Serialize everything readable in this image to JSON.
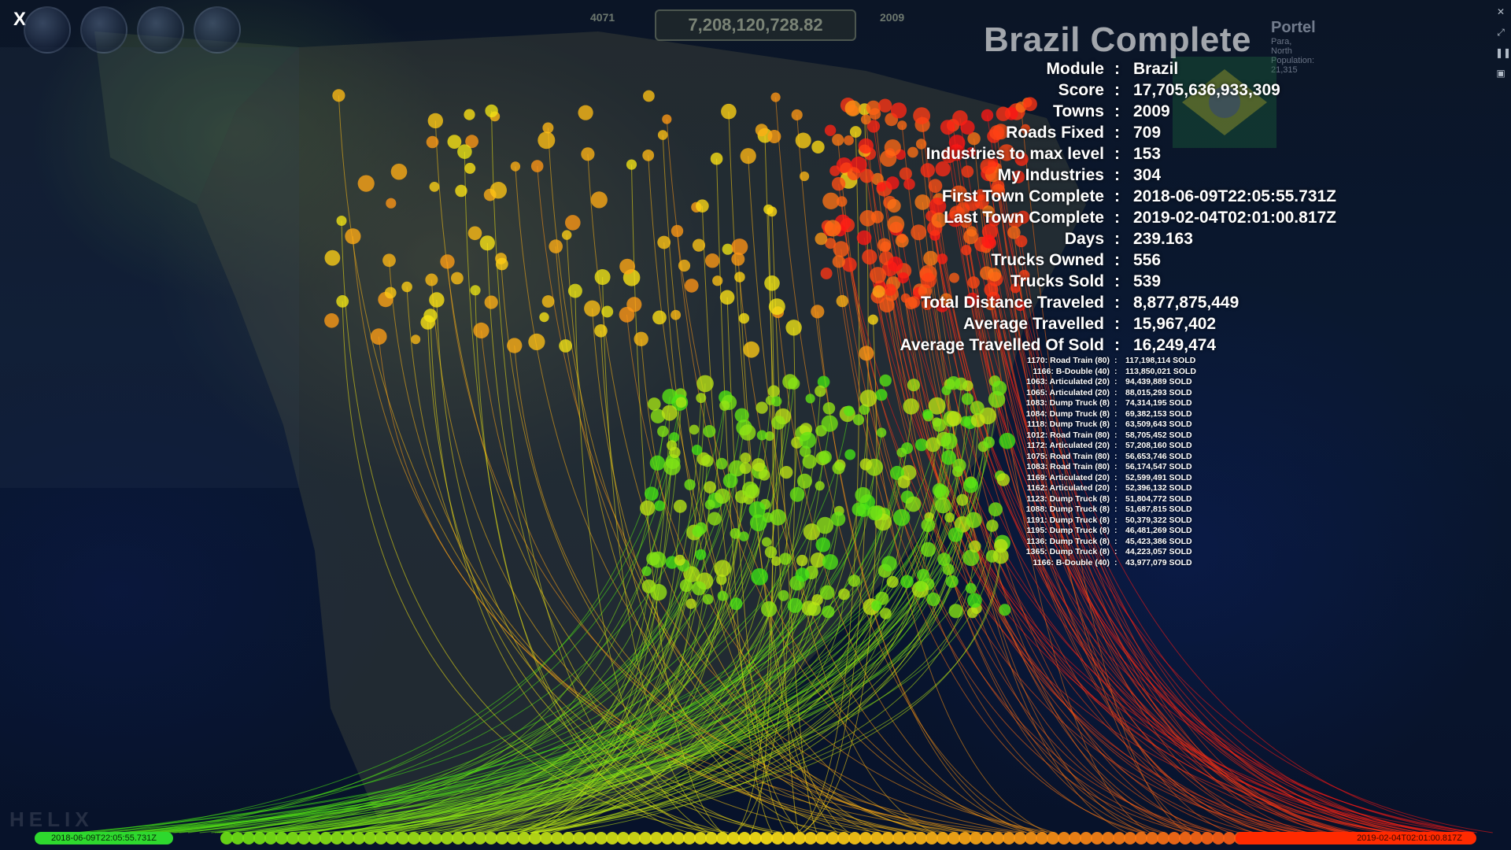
{
  "window": {
    "close_label": "X"
  },
  "hud": {
    "money": "7,208,120,728.82",
    "left_count": "4071",
    "year": "2009",
    "town_name": "Portel",
    "town_region": "Para, North",
    "town_population": "Population: 21,315"
  },
  "summary": {
    "title": "Brazil Complete",
    "stats": [
      {
        "label": "Module",
        "value": "Brazil"
      },
      {
        "label": "Score",
        "value": "17,705,636,933,309"
      },
      {
        "label": "Towns",
        "value": "2009"
      },
      {
        "label": "Roads Fixed",
        "value": "709"
      },
      {
        "label": "Industries to max level",
        "value": "153"
      },
      {
        "label": "My Industries",
        "value": "304"
      },
      {
        "label": "First Town Complete",
        "value": "2018-06-09T22:05:55.731Z"
      },
      {
        "label": "Last Town Complete",
        "value": "2019-02-04T02:01:00.817Z"
      },
      {
        "label": "Days",
        "value": "239.163"
      },
      {
        "label": "Trucks Owned",
        "value": "556"
      },
      {
        "label": "Trucks Sold",
        "value": "539"
      },
      {
        "label": "Total Distance Traveled",
        "value": "8,877,875,449"
      },
      {
        "label": "Average Travelled",
        "value": "15,967,402"
      },
      {
        "label": "Average Travelled Of Sold",
        "value": "16,249,474"
      }
    ],
    "sold_trucks": [
      {
        "name": "1170: Road Train (80)",
        "value": "117,198,114 SOLD"
      },
      {
        "name": "1166: B-Double (40)",
        "value": "113,850,021 SOLD"
      },
      {
        "name": "1063: Articulated (20)",
        "value": "94,439,889 SOLD"
      },
      {
        "name": "1065: Articulated (20)",
        "value": "88,015,293 SOLD"
      },
      {
        "name": "1083: Dump Truck (8)",
        "value": "74,314,195 SOLD"
      },
      {
        "name": "1084: Dump Truck (8)",
        "value": "69,382,153 SOLD"
      },
      {
        "name": "1118: Dump Truck (8)",
        "value": "63,509,643 SOLD"
      },
      {
        "name": "1012: Road Train (80)",
        "value": "58,705,452 SOLD"
      },
      {
        "name": "1172: Articulated (20)",
        "value": "57,208,160 SOLD"
      },
      {
        "name": "1075: Road Train (80)",
        "value": "56,653,746 SOLD"
      },
      {
        "name": "1083: Road Train (80)",
        "value": "56,174,547 SOLD"
      },
      {
        "name": "1169: Articulated (20)",
        "value": "52,599,491 SOLD"
      },
      {
        "name": "1162: Articulated (20)",
        "value": "52,396,132 SOLD"
      },
      {
        "name": "1123: Dump Truck (8)",
        "value": "51,804,772 SOLD"
      },
      {
        "name": "1088: Dump Truck (8)",
        "value": "51,687,815 SOLD"
      },
      {
        "name": "1191: Dump Truck (8)",
        "value": "50,379,322 SOLD"
      },
      {
        "name": "1195: Dump Truck (8)",
        "value": "46,481,269 SOLD"
      },
      {
        "name": "1136: Dump Truck (8)",
        "value": "45,423,386 SOLD"
      },
      {
        "name": "1365: Dump Truck (8)",
        "value": "44,223,057 SOLD"
      },
      {
        "name": "1166: B-Double (40)",
        "value": "43,977,079 SOLD"
      }
    ]
  },
  "timeline": {
    "start_label": "2018-06-09T22:05:55.731Z",
    "end_label": "2019-02-04T02:01:00.817Z",
    "start_color": "#2ed82e",
    "end_color": "#ff2a00"
  },
  "colors": {
    "label_gold": "#ffd200",
    "value_white": "#ffffff"
  }
}
